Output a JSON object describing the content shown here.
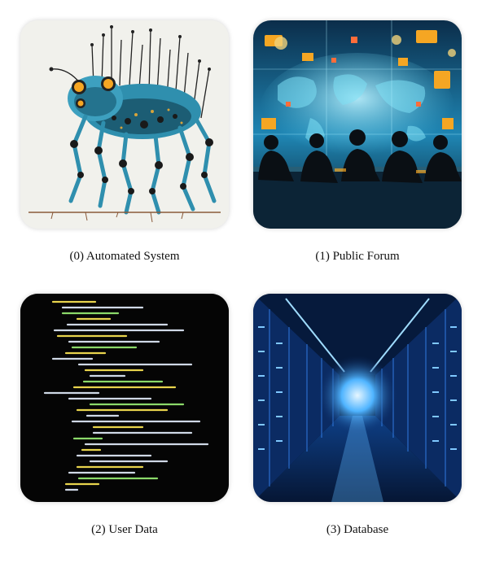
{
  "panels": [
    {
      "caption": "(0) Automated System",
      "icon": "robot-illustration"
    },
    {
      "caption": "(1) Public Forum",
      "icon": "people-at-world-map-illustration"
    },
    {
      "caption": "(2) User Data",
      "icon": "code-terminal-illustration"
    },
    {
      "caption": "(3) Database",
      "icon": "server-corridor-illustration"
    }
  ],
  "colors": {
    "robot_teal": "#2f8fae",
    "forum_glow": "#5fd3f0",
    "forum_orange": "#f5a623",
    "code_yellow": "#e8d44d",
    "code_bg": "#050505",
    "server_blue": "#1e6fe0"
  }
}
